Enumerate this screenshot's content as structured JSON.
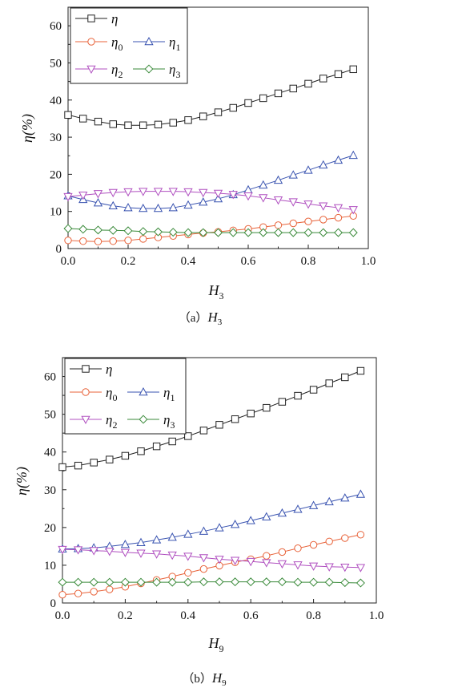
{
  "chart_data": [
    {
      "type": "line",
      "caption": {
        "prefix": "（a）",
        "var": "H",
        "sub": "3"
      },
      "xlabel": {
        "var": "H",
        "sub": "3"
      },
      "ylabel": "η(%)",
      "xlim": [
        0,
        1.0
      ],
      "ylim": [
        0,
        65
      ],
      "xticks": [
        "0.0",
        "0.2",
        "0.4",
        "0.6",
        "0.8",
        "1.0"
      ],
      "yticks": [
        "0",
        "10",
        "20",
        "30",
        "40",
        "50",
        "60"
      ],
      "grid": false,
      "legend_position": "top-left",
      "x": [
        0,
        0.05,
        0.1,
        0.15,
        0.2,
        0.25,
        0.3,
        0.35,
        0.4,
        0.45,
        0.5,
        0.55,
        0.6,
        0.65,
        0.7,
        0.75,
        0.8,
        0.85,
        0.9,
        0.95
      ],
      "series": [
        {
          "name": "η",
          "sub": "",
          "color": "#222222",
          "marker": "square",
          "values": [
            36,
            35,
            34.2,
            33.5,
            33.2,
            33.2,
            33.4,
            33.9,
            34.6,
            35.6,
            36.7,
            37.9,
            39.2,
            40.5,
            41.8,
            43.1,
            44.4,
            45.8,
            47,
            48.3
          ]
        },
        {
          "name": "η",
          "sub": "0",
          "color": "#e8633a",
          "marker": "circle",
          "values": [
            2.2,
            2.0,
            1.9,
            2.0,
            2.2,
            2.6,
            3.0,
            3.4,
            3.8,
            4.2,
            4.5,
            4.9,
            5.3,
            5.8,
            6.3,
            6.8,
            7.3,
            7.8,
            8.3,
            8.8
          ]
        },
        {
          "name": "η",
          "sub": "1",
          "color": "#3953b0",
          "marker": "triangle-up",
          "values": [
            14.2,
            13.2,
            12.3,
            11.5,
            11.0,
            10.8,
            10.8,
            11.0,
            11.7,
            12.5,
            13.4,
            14.5,
            15.8,
            17.1,
            18.4,
            19.8,
            21.1,
            22.5,
            23.8,
            25.1
          ]
        },
        {
          "name": "η",
          "sub": "2",
          "color": "#b050c0",
          "marker": "triangle-down",
          "values": [
            14.0,
            14.4,
            14.8,
            15.1,
            15.3,
            15.4,
            15.4,
            15.4,
            15.3,
            15.1,
            14.9,
            14.6,
            14.2,
            13.7,
            13.1,
            12.6,
            12.0,
            11.5,
            11.0,
            10.5
          ]
        },
        {
          "name": "η",
          "sub": "3",
          "color": "#3a8a3a",
          "marker": "diamond",
          "values": [
            5.4,
            5.2,
            5.0,
            4.9,
            4.8,
            4.6,
            4.5,
            4.4,
            4.3,
            4.3,
            4.3,
            4.3,
            4.3,
            4.3,
            4.3,
            4.3,
            4.3,
            4.3,
            4.3,
            4.3
          ]
        }
      ]
    },
    {
      "type": "line",
      "caption": {
        "prefix": "（b）",
        "var": "H",
        "sub": "9"
      },
      "xlabel": {
        "var": "H",
        "sub": "9"
      },
      "ylabel": "η(%)",
      "xlim": [
        0,
        1.0
      ],
      "ylim": [
        0,
        65
      ],
      "xticks": [
        "0.0",
        "0.2",
        "0.4",
        "0.6",
        "0.8",
        "1.0"
      ],
      "yticks": [
        "0",
        "10",
        "20",
        "30",
        "40",
        "50",
        "60"
      ],
      "grid": false,
      "legend_position": "top-left",
      "x": [
        0,
        0.05,
        0.1,
        0.15,
        0.2,
        0.25,
        0.3,
        0.35,
        0.4,
        0.45,
        0.5,
        0.55,
        0.6,
        0.65,
        0.7,
        0.75,
        0.8,
        0.85,
        0.9,
        0.95
      ],
      "series": [
        {
          "name": "η",
          "sub": "",
          "color": "#222222",
          "marker": "square",
          "values": [
            36.0,
            36.4,
            37.2,
            38.0,
            39.0,
            40.2,
            41.5,
            42.8,
            44.2,
            45.7,
            47.2,
            48.7,
            50.2,
            51.7,
            53.3,
            54.9,
            56.5,
            58.2,
            59.8,
            61.5
          ]
        },
        {
          "name": "η",
          "sub": "0",
          "color": "#e8633a",
          "marker": "circle",
          "values": [
            2.2,
            2.5,
            3.0,
            3.6,
            4.3,
            5.2,
            6.1,
            7.0,
            8.0,
            9.0,
            9.9,
            10.8,
            11.6,
            12.5,
            13.5,
            14.5,
            15.4,
            16.3,
            17.2,
            18.1
          ]
        },
        {
          "name": "η",
          "sub": "1",
          "color": "#3953b0",
          "marker": "triangle-up",
          "values": [
            14.3,
            14.4,
            14.6,
            15.0,
            15.5,
            16.0,
            16.7,
            17.4,
            18.2,
            19.0,
            19.9,
            20.8,
            21.8,
            22.8,
            23.8,
            24.8,
            25.8,
            26.8,
            27.8,
            28.8
          ]
        },
        {
          "name": "η",
          "sub": "2",
          "color": "#b050c0",
          "marker": "triangle-down",
          "values": [
            14.2,
            14.1,
            13.9,
            13.7,
            13.4,
            13.2,
            13.0,
            12.7,
            12.4,
            12.0,
            11.6,
            11.3,
            11.0,
            10.7,
            10.4,
            10.1,
            9.8,
            9.6,
            9.5,
            9.4
          ]
        },
        {
          "name": "η",
          "sub": "3",
          "color": "#3a8a3a",
          "marker": "diamond",
          "values": [
            5.5,
            5.5,
            5.5,
            5.5,
            5.5,
            5.5,
            5.5,
            5.5,
            5.5,
            5.6,
            5.6,
            5.6,
            5.6,
            5.6,
            5.6,
            5.5,
            5.5,
            5.5,
            5.4,
            5.3
          ]
        }
      ]
    }
  ]
}
